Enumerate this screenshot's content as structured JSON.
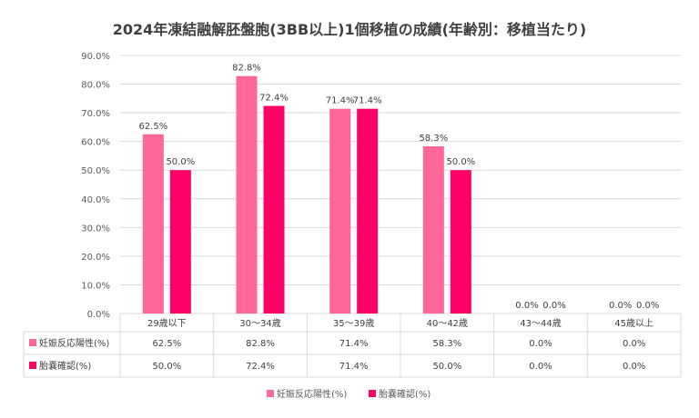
{
  "chart_data": {
    "type": "bar",
    "title": "2024年凍結融解胚盤胞(3BB以上)1個移植の成績(年齢別：移植当たり)",
    "categories": [
      "29歳以下",
      "30～34歳",
      "35～39歳",
      "40～42歳",
      "43～44歳",
      "45歳以上"
    ],
    "series": [
      {
        "name": "妊娠反応陽性(%)",
        "values": [
          62.5,
          82.8,
          71.4,
          58.3,
          0.0,
          0.0
        ],
        "labels": [
          "62.5%",
          "82.8%",
          "71.4%",
          "58.3%",
          "0.0%",
          "0.0%"
        ],
        "table": [
          "62.5%",
          "82.8%",
          "71.4%",
          "58.3%",
          "0.0%",
          "0.0%"
        ],
        "color": "#ff6699"
      },
      {
        "name": "胎嚢確認(%)",
        "values": [
          50.0,
          72.4,
          71.4,
          50.0,
          0.0,
          0.0
        ],
        "labels": [
          "50.0%",
          "72.4%",
          "71.4%",
          "50.0%",
          "0.0%",
          "0.0%"
        ],
        "table": [
          "50.0%",
          "72.4%",
          "71.4%",
          "50.0%",
          "0.0%",
          "0.0%"
        ],
        "color": "#ff0066"
      }
    ],
    "ylim": [
      0,
      90
    ],
    "yticks": [
      "0.0%",
      "10.0%",
      "20.0%",
      "30.0%",
      "40.0%",
      "50.0%",
      "60.0%",
      "70.0%",
      "80.0%",
      "90.0%"
    ],
    "grid": true,
    "legend": "bottom",
    "data_table": true
  }
}
